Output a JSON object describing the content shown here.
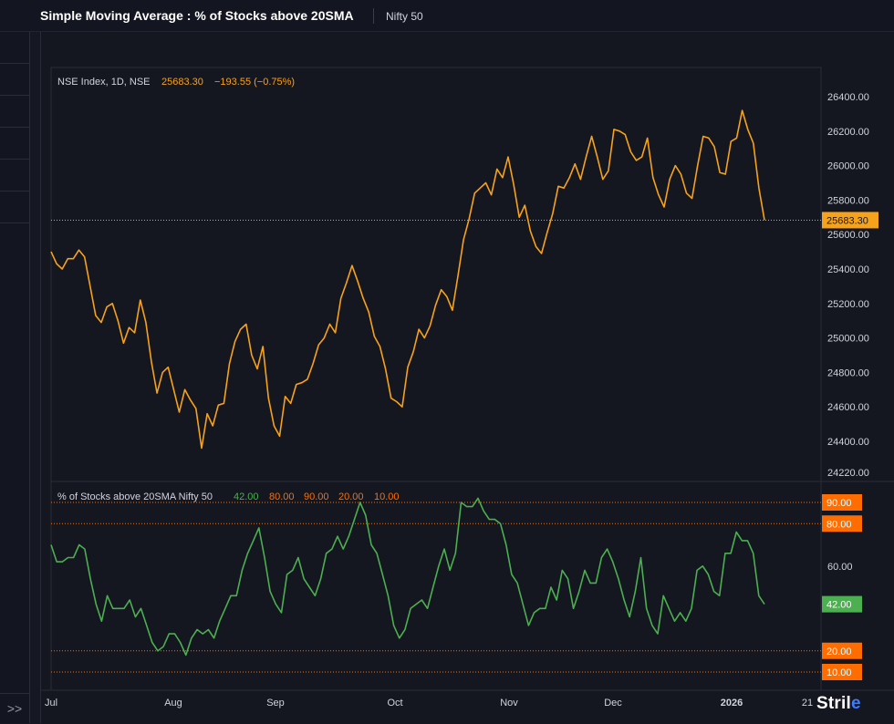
{
  "header": {
    "title": "Simple Moving Average : % of Stocks above 20SMA",
    "symbol": "Nifty 50"
  },
  "sidebar": {
    "expand_label": ">>"
  },
  "brand": {
    "text_a": "Stril",
    "text_b": "e"
  },
  "colors": {
    "price": "#f7a21b",
    "breadth": "#4caf50",
    "ref": "#ff6d00",
    "grid": "#2a2e39"
  },
  "price_legend": {
    "name": "NSE Index, 1D, NSE",
    "close": "25683.30",
    "change": "−193.55 (−0.75%)"
  },
  "breadth_legend": {
    "name": "% of Stocks above 20SMA Nifty 50",
    "v1": "42.00",
    "v2": "80.00",
    "v3": "90.00",
    "v4": "20.00",
    "v5": "10.00"
  },
  "chart_data": [
    {
      "type": "line",
      "title": "NSE Index, 1D, NSE",
      "y_ticks": [
        "26400.00",
        "26200.00",
        "26000.00",
        "25800.00",
        "25600.00",
        "25400.00",
        "25200.00",
        "25000.00",
        "24800.00",
        "24600.00",
        "24400.00",
        "24220.00"
      ],
      "ylim": [
        24220,
        26470
      ],
      "last_value_label": "25683.30",
      "series": [
        {
          "values": [
            25500,
            25430,
            25400,
            25460,
            25460,
            25510,
            25470,
            25300,
            25130,
            25090,
            25180,
            25200,
            25100,
            24970,
            25060,
            25030,
            25220,
            25090,
            24860,
            24680,
            24800,
            24830,
            24700,
            24570,
            24700,
            24640,
            24590,
            24360,
            24560,
            24490,
            24610,
            24620,
            24850,
            24980,
            25050,
            25080,
            24900,
            24820,
            24950,
            24650,
            24490,
            24430,
            24660,
            24620,
            24730,
            24740,
            24760,
            24850,
            24960,
            25000,
            25080,
            25030,
            25230,
            25320,
            25420,
            25330,
            25230,
            25150,
            25010,
            24950,
            24820,
            24650,
            24630,
            24600,
            24830,
            24920,
            25050,
            25000,
            25070,
            25190,
            25280,
            25240,
            25160,
            25360,
            25570,
            25690,
            25840,
            25870,
            25900,
            25830,
            25980,
            25930,
            26050,
            25890,
            25700,
            25770,
            25620,
            25530,
            25490,
            25610,
            25720,
            25880,
            25870,
            25930,
            26010,
            25920,
            26050,
            26170,
            26050,
            25920,
            25970,
            26210,
            26200,
            26180,
            26080,
            26030,
            26050,
            26160,
            25930,
            25830,
            25760,
            25920,
            26000,
            25950,
            25840,
            25810,
            26000,
            26170,
            26160,
            26110,
            25960,
            25950,
            26140,
            26160,
            26320,
            26210,
            26130,
            25870,
            25683.3
          ]
        }
      ]
    },
    {
      "type": "line",
      "title": "% of Stocks above 20SMA Nifty 50",
      "y_ticks": [
        "60.00"
      ],
      "ylim": [
        3,
        93
      ],
      "reference_lines": [
        90,
        80,
        20,
        10
      ],
      "last_value_label": "42.00",
      "x_tick_labels": [
        "Jul",
        "Aug",
        "Sep",
        "Oct",
        "Nov",
        "Dec",
        "2026",
        "21"
      ],
      "series": [
        {
          "values": [
            70,
            62,
            62,
            64,
            64,
            70,
            68,
            54,
            42,
            34,
            46,
            40,
            40,
            40,
            44,
            36,
            40,
            32,
            24,
            20,
            22,
            28,
            28,
            24,
            18,
            26,
            30,
            28,
            30,
            26,
            34,
            40,
            46,
            46,
            58,
            66,
            72,
            78,
            64,
            48,
            42,
            38,
            56,
            58,
            64,
            54,
            50,
            46,
            54,
            66,
            68,
            74,
            68,
            74,
            82,
            90,
            84,
            70,
            66,
            56,
            46,
            32,
            26,
            30,
            40,
            42,
            44,
            40,
            50,
            60,
            68,
            58,
            66,
            90,
            88,
            88,
            92,
            86,
            82,
            82,
            80,
            70,
            56,
            52,
            42,
            32,
            38,
            40,
            40,
            50,
            44,
            58,
            54,
            40,
            48,
            58,
            52,
            52,
            64,
            68,
            62,
            54,
            44,
            36,
            48,
            64,
            40,
            32,
            28,
            46,
            40,
            34,
            38,
            34,
            40,
            58,
            60,
            56,
            48,
            46,
            66,
            66,
            76,
            72,
            72,
            66,
            46,
            42
          ]
        }
      ]
    }
  ]
}
